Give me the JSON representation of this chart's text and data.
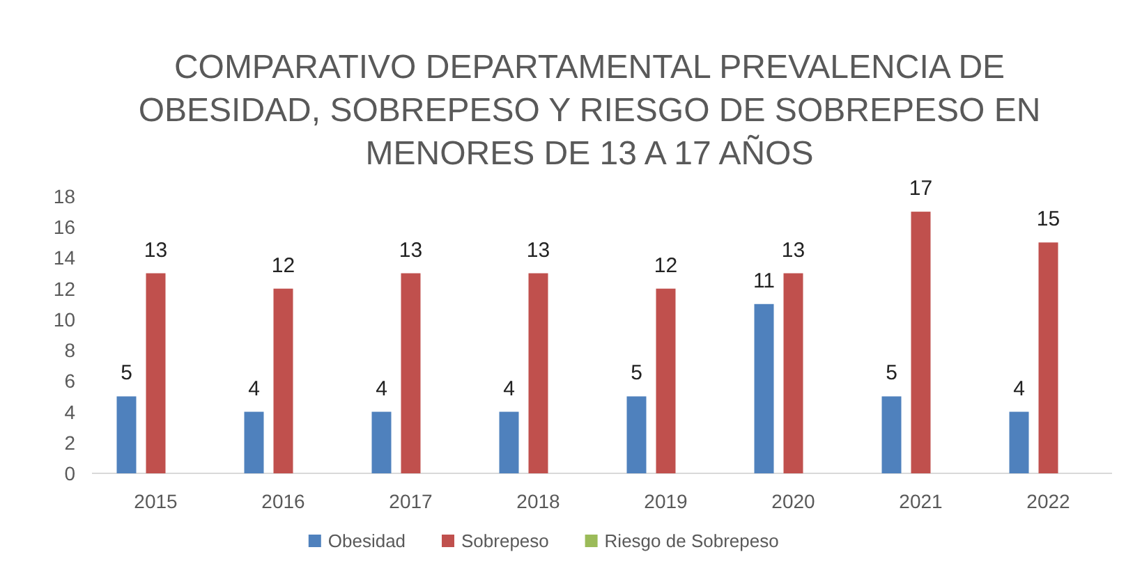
{
  "chart_data": {
    "type": "bar",
    "title": "COMPARATIVO DEPARTAMENTAL PREVALENCIA DE OBESIDAD, SOBREPESO Y RIESGO DE SOBREPESO EN MENORES DE 13 A 17 AÑOS",
    "categories": [
      "2015",
      "2016",
      "2017",
      "2018",
      "2019",
      "2020",
      "2021",
      "2022"
    ],
    "series": [
      {
        "name": "Obesidad",
        "color": "#4f81bd",
        "values": [
          5,
          4,
          4,
          4,
          5,
          11,
          5,
          4
        ]
      },
      {
        "name": "Sobrepeso",
        "color": "#c0504d",
        "values": [
          13,
          12,
          13,
          13,
          12,
          13,
          17,
          15
        ]
      },
      {
        "name": "Riesgo de Sobrepeso",
        "color": "#9bbb59",
        "values": [
          null,
          null,
          null,
          null,
          null,
          null,
          null,
          null
        ]
      }
    ],
    "ylim": [
      0,
      18
    ],
    "yticks": [
      0,
      2,
      4,
      6,
      8,
      10,
      12,
      14,
      16,
      18
    ],
    "data_labels": true,
    "legend": "bottom"
  }
}
